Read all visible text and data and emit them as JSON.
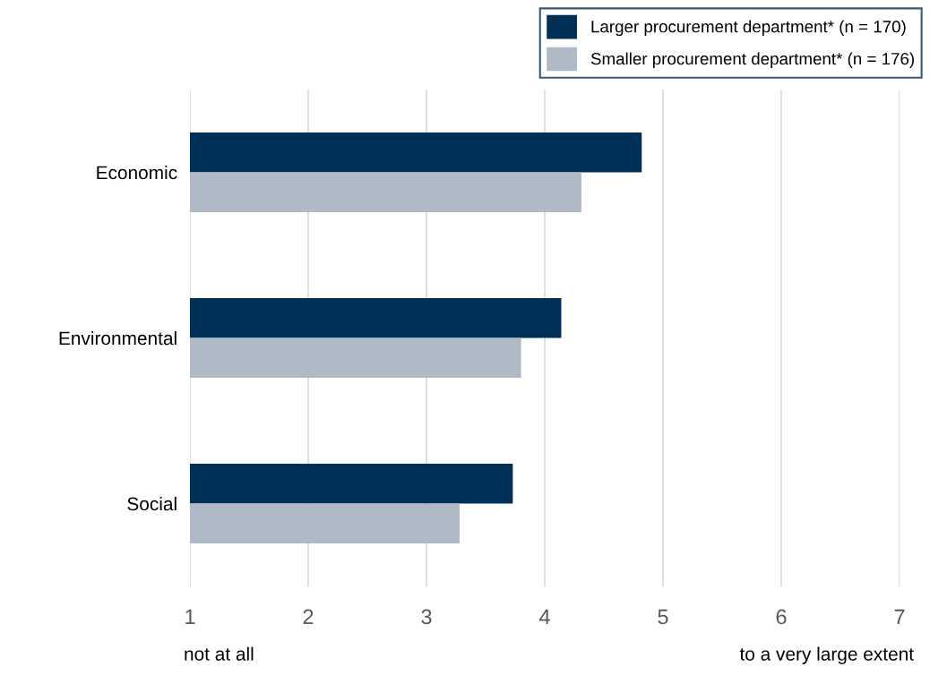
{
  "chart_data": {
    "type": "bar",
    "orientation": "horizontal",
    "categories": [
      "Economic",
      "Environmental",
      "Social"
    ],
    "series": [
      {
        "name": "Larger procurement department* (n = 170)",
        "color": "#003056",
        "values": [
          4.82,
          4.14,
          3.73
        ]
      },
      {
        "name": "Smaller procurement department* (n = 176)",
        "color": "#afbac6",
        "values": [
          4.31,
          3.8,
          3.28
        ]
      }
    ],
    "xlim": [
      1,
      7
    ],
    "xticks": [
      1,
      2,
      3,
      4,
      5,
      6,
      7
    ],
    "grid": "x",
    "legend": "top right",
    "annotations": [
      "not at all",
      "to a very large extent"
    ]
  }
}
